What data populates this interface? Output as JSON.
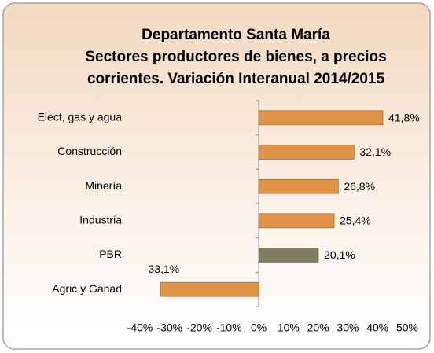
{
  "chart_data": {
    "type": "barh",
    "title": [
      "Departamento Santa María",
      "Sectores productores de bienes, a precios",
      "corrientes. Variación Interanual 2014/2015"
    ],
    "categories": [
      "Elect, gas y agua",
      "Construcción",
      "Minería",
      "Industria",
      "PBR",
      "Agric y Ganad"
    ],
    "values": [
      41.8,
      32.1,
      26.8,
      25.4,
      20.1,
      -33.1
    ],
    "value_labels": [
      "41,8%",
      "32,1%",
      "26,8%",
      "25,4%",
      "20,1%",
      "-33,1%"
    ],
    "colors": [
      "#e0944a",
      "#e0944a",
      "#e0944a",
      "#e0944a",
      "#7f7c63",
      "#e0944a"
    ],
    "xlim": [
      -40,
      50
    ],
    "xticks": [
      {
        "value": -40,
        "label": "-40%"
      },
      {
        "value": -30,
        "label": "-30%"
      },
      {
        "value": -20,
        "label": "-20%"
      },
      {
        "value": -10,
        "label": "-10%"
      },
      {
        "value": 0,
        "label": "0%"
      },
      {
        "value": 10,
        "label": "10%"
      },
      {
        "value": 20,
        "label": "20%"
      },
      {
        "value": 30,
        "label": "30%"
      },
      {
        "value": 40,
        "label": "40%"
      },
      {
        "value": 50,
        "label": "50%"
      }
    ],
    "grid": false
  }
}
